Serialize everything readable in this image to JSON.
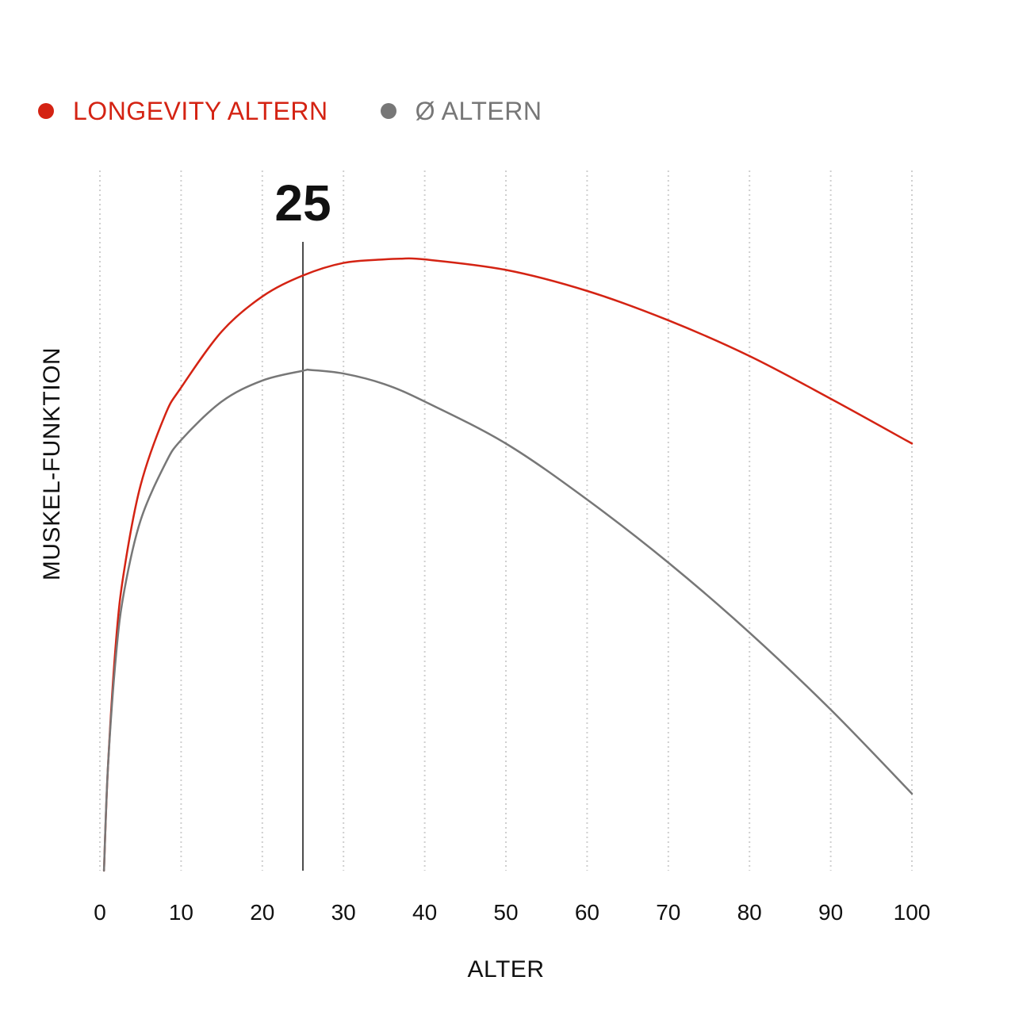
{
  "chart_data": {
    "type": "line",
    "xlabel": "ALTER",
    "ylabel": "MUSKEL-FUNKTION",
    "xlim": [
      0,
      100
    ],
    "ylim": [
      0,
      100
    ],
    "x_ticks": [
      0,
      10,
      20,
      30,
      40,
      50,
      60,
      70,
      80,
      90,
      100
    ],
    "grid": "vertical-dotted",
    "legend_position": "top-left",
    "marker": {
      "x": 25,
      "label": "25"
    },
    "series": [
      {
        "name": "LONGEVITY ALTERN",
        "color": "#d42313",
        "x": [
          0.5,
          1,
          2,
          3,
          5,
          8,
          10,
          15,
          20,
          25,
          30,
          35,
          37,
          40,
          50,
          60,
          70,
          80,
          90,
          100
        ],
        "y": [
          0,
          15,
          33,
          43,
          55,
          65,
          69,
          77,
          82,
          85,
          86.8,
          87.3,
          87.4,
          87.3,
          85.8,
          82.8,
          78.6,
          73.5,
          67.4,
          61
        ]
      },
      {
        "name": "Ø ALTERN",
        "color": "#777777",
        "x": [
          0.5,
          1,
          2,
          3,
          5,
          8,
          10,
          15,
          20,
          25,
          26,
          30,
          35,
          40,
          50,
          60,
          70,
          80,
          90,
          100
        ],
        "y": [
          0,
          15,
          31,
          40,
          50,
          58,
          61.5,
          67,
          70,
          71.4,
          71.5,
          71,
          69.5,
          67,
          61,
          53,
          44,
          34,
          23,
          11
        ]
      }
    ]
  }
}
